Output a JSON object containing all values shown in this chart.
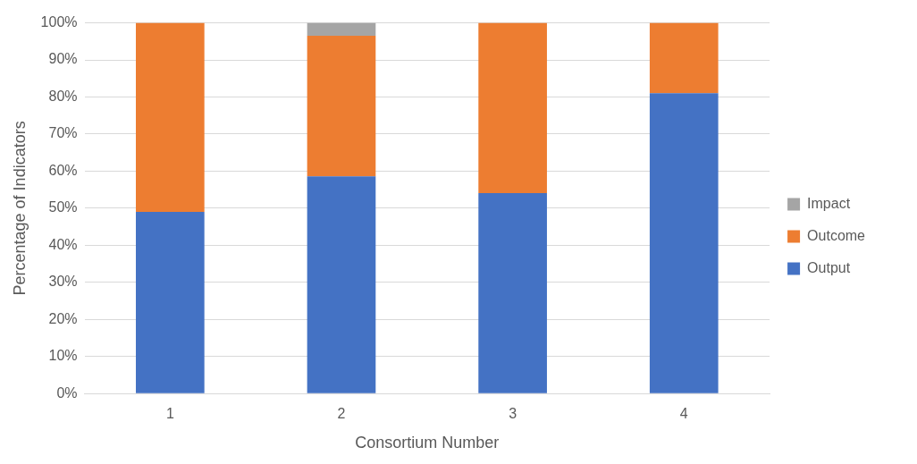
{
  "chart_data": {
    "type": "bar",
    "xlabel": "Consortium Number",
    "ylabel": "Percentage of Indicators",
    "categories": [
      "1",
      "2",
      "3",
      "4"
    ],
    "series": [
      {
        "name": "Output",
        "color": "#4472c4",
        "values": [
          49,
          58.6,
          54.1,
          81
        ]
      },
      {
        "name": "Outcome",
        "color": "#ed7d31",
        "values": [
          51,
          37.9,
          45.9,
          19
        ]
      },
      {
        "name": "Impact",
        "color": "#a5a5a5",
        "values": [
          0,
          3.5,
          0,
          0
        ]
      }
    ],
    "stacked": true,
    "ylim": [
      0,
      100
    ],
    "yticks": [
      {
        "value": 0,
        "label": "0%"
      },
      {
        "value": 10,
        "label": "10%"
      },
      {
        "value": 20,
        "label": "20%"
      },
      {
        "value": 30,
        "label": "30%"
      },
      {
        "value": 40,
        "label": "40%"
      },
      {
        "value": 50,
        "label": "50%"
      },
      {
        "value": 60,
        "label": "60%"
      },
      {
        "value": 70,
        "label": "70%"
      },
      {
        "value": 80,
        "label": "80%"
      },
      {
        "value": 90,
        "label": "90%"
      },
      {
        "value": 100,
        "label": "100%"
      }
    ],
    "grid": "y",
    "legend": "right"
  }
}
